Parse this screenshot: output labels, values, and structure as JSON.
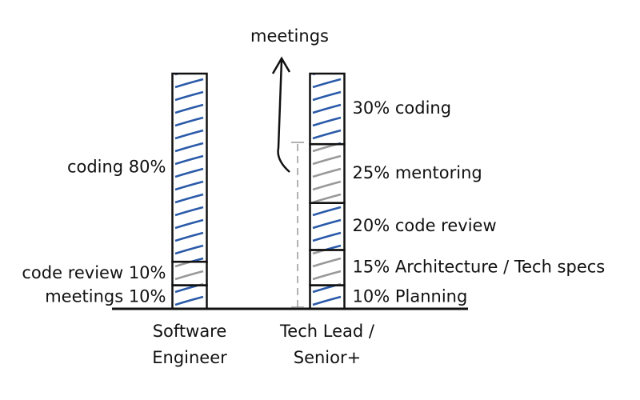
{
  "chart_data": {
    "type": "stacked_bar",
    "categories": [
      "Software Engineer",
      "Tech Lead / Senior+"
    ],
    "stacks": [
      [
        {
          "value": 10,
          "label": "meetings 10%",
          "color": "#2a5aa8"
        },
        {
          "value": 10,
          "label": "code review 10%",
          "color": "#999999"
        },
        {
          "value": 80,
          "label": "coding 80%",
          "color": "#2a5aa8"
        }
      ],
      [
        {
          "value": 10,
          "label": "10% Planning",
          "color": "#2a5aa8"
        },
        {
          "value": 15,
          "label": "15% Architecture / Tech specs",
          "color": "#999999"
        },
        {
          "value": 20,
          "label": "20% code review",
          "color": "#2a5aa8"
        },
        {
          "value": 25,
          "label": "25% mentoring",
          "color": "#999999"
        },
        {
          "value": 30,
          "label": "30% coding",
          "color": "#2a5aa8"
        }
      ]
    ],
    "annotation": "meetings"
  }
}
